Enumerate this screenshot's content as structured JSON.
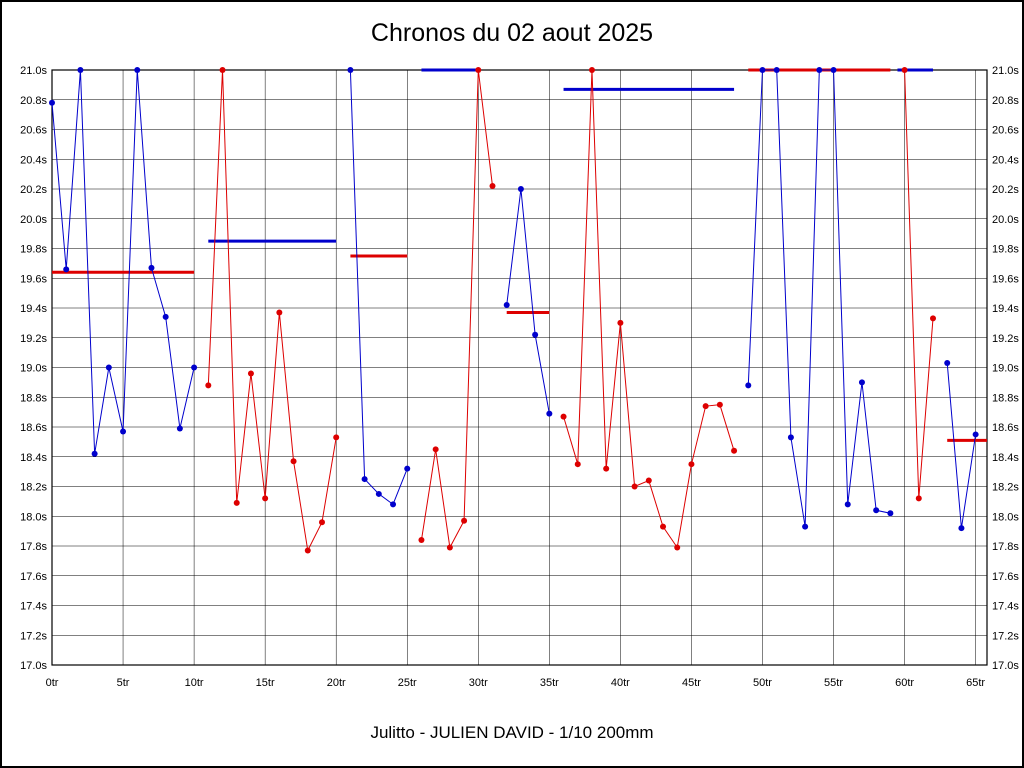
{
  "chart_data": {
    "type": "line",
    "title": "Chronos du 02 aout 2025",
    "footer": "Julitto - JULIEN DAVID - 1/10 200mm",
    "xlabel": "",
    "ylabel": "",
    "x_unit": "tr",
    "y_unit": "s",
    "xlim": [
      0,
      65.8
    ],
    "ylim": [
      17.0,
      21.0
    ],
    "grid": true,
    "legend": "none",
    "x_ticks": [
      "0tr",
      "5tr",
      "10tr",
      "15tr",
      "20tr",
      "25tr",
      "30tr",
      "35tr",
      "40tr",
      "45tr",
      "50tr",
      "55tr",
      "60tr",
      "65tr"
    ],
    "y_ticks": [
      "17.0s",
      "17.2s",
      "17.4s",
      "17.6s",
      "17.8s",
      "18.0s",
      "18.2s",
      "18.4s",
      "18.6s",
      "18.8s",
      "19.0s",
      "19.2s",
      "19.4s",
      "19.6s",
      "19.8s",
      "20.0s",
      "20.2s",
      "20.4s",
      "20.6s",
      "20.8s",
      "21.0s"
    ],
    "colors": {
      "blue_series": "#0000cc",
      "red_series": "#dd0000",
      "grid": "#000000",
      "background": "#ffffff"
    },
    "series": [
      {
        "name": "series-blue",
        "color": "#0000cc",
        "segments": [
          [
            [
              0,
              20.78
            ],
            [
              1,
              19.66
            ],
            [
              2,
              21.0
            ],
            [
              3,
              18.42
            ],
            [
              4,
              19.0
            ],
            [
              5,
              18.57
            ],
            [
              6,
              21.0
            ],
            [
              7,
              19.67
            ],
            [
              8,
              19.34
            ],
            [
              9,
              18.59
            ],
            [
              10,
              19.0
            ]
          ],
          [
            [
              21,
              21.0
            ],
            [
              22,
              18.25
            ],
            [
              23,
              18.15
            ],
            [
              24,
              18.08
            ],
            [
              25,
              18.32
            ]
          ],
          [
            [
              32,
              19.42
            ],
            [
              33,
              20.2
            ],
            [
              34,
              19.22
            ],
            [
              35,
              18.69
            ]
          ],
          [
            [
              49,
              18.88
            ],
            [
              50,
              21.0
            ],
            [
              51,
              21.0
            ],
            [
              52,
              18.53
            ],
            [
              53,
              17.93
            ],
            [
              54,
              21.0
            ],
            [
              55,
              21.0
            ],
            [
              56,
              18.08
            ],
            [
              57,
              18.9
            ],
            [
              58,
              18.04
            ],
            [
              59,
              18.02
            ]
          ],
          [
            [
              63,
              19.03
            ],
            [
              64,
              17.92
            ],
            [
              65,
              18.55
            ]
          ]
        ]
      },
      {
        "name": "series-red",
        "color": "#dd0000",
        "segments": [
          [
            [
              11,
              18.88
            ],
            [
              12,
              21.0
            ],
            [
              13,
              18.09
            ],
            [
              14,
              18.96
            ],
            [
              15,
              18.12
            ],
            [
              16,
              19.37
            ],
            [
              17,
              18.37
            ],
            [
              18,
              17.77
            ],
            [
              19,
              17.96
            ],
            [
              20,
              18.53
            ]
          ],
          [
            [
              26,
              17.84
            ],
            [
              27,
              18.45
            ],
            [
              28,
              17.79
            ],
            [
              29,
              17.97
            ],
            [
              30,
              21.0
            ],
            [
              31,
              20.22
            ]
          ],
          [
            [
              36,
              18.67
            ],
            [
              37,
              18.35
            ],
            [
              38,
              21.0
            ],
            [
              39,
              18.32
            ],
            [
              40,
              19.3
            ],
            [
              41,
              18.2
            ],
            [
              42,
              18.24
            ],
            [
              43,
              17.93
            ],
            [
              44,
              17.79
            ],
            [
              45,
              18.35
            ],
            [
              46,
              18.74
            ],
            [
              47,
              18.75
            ],
            [
              48,
              18.44
            ]
          ],
          [
            [
              60,
              21.0
            ],
            [
              61,
              18.12
            ],
            [
              62,
              19.33
            ]
          ]
        ]
      }
    ],
    "average_lines": [
      {
        "color": "#dd0000",
        "from": 0,
        "to": 10,
        "value": 19.64
      },
      {
        "color": "#0000cc",
        "from": 11,
        "to": 20,
        "value": 19.85
      },
      {
        "color": "#dd0000",
        "from": 21,
        "to": 25,
        "value": 19.75
      },
      {
        "color": "#0000cc",
        "from": 26,
        "to": 30,
        "value": 21.0
      },
      {
        "color": "#dd0000",
        "from": 32,
        "to": 35,
        "value": 19.37
      },
      {
        "color": "#0000cc",
        "from": 36,
        "to": 48,
        "value": 20.87
      },
      {
        "color": "#dd0000",
        "from": 49,
        "to": 59,
        "value": 21.0
      },
      {
        "color": "#0000cc",
        "from": 59.5,
        "to": 62,
        "value": 21.0
      },
      {
        "color": "#dd0000",
        "from": 63,
        "to": 65.8,
        "value": 18.51
      }
    ]
  }
}
